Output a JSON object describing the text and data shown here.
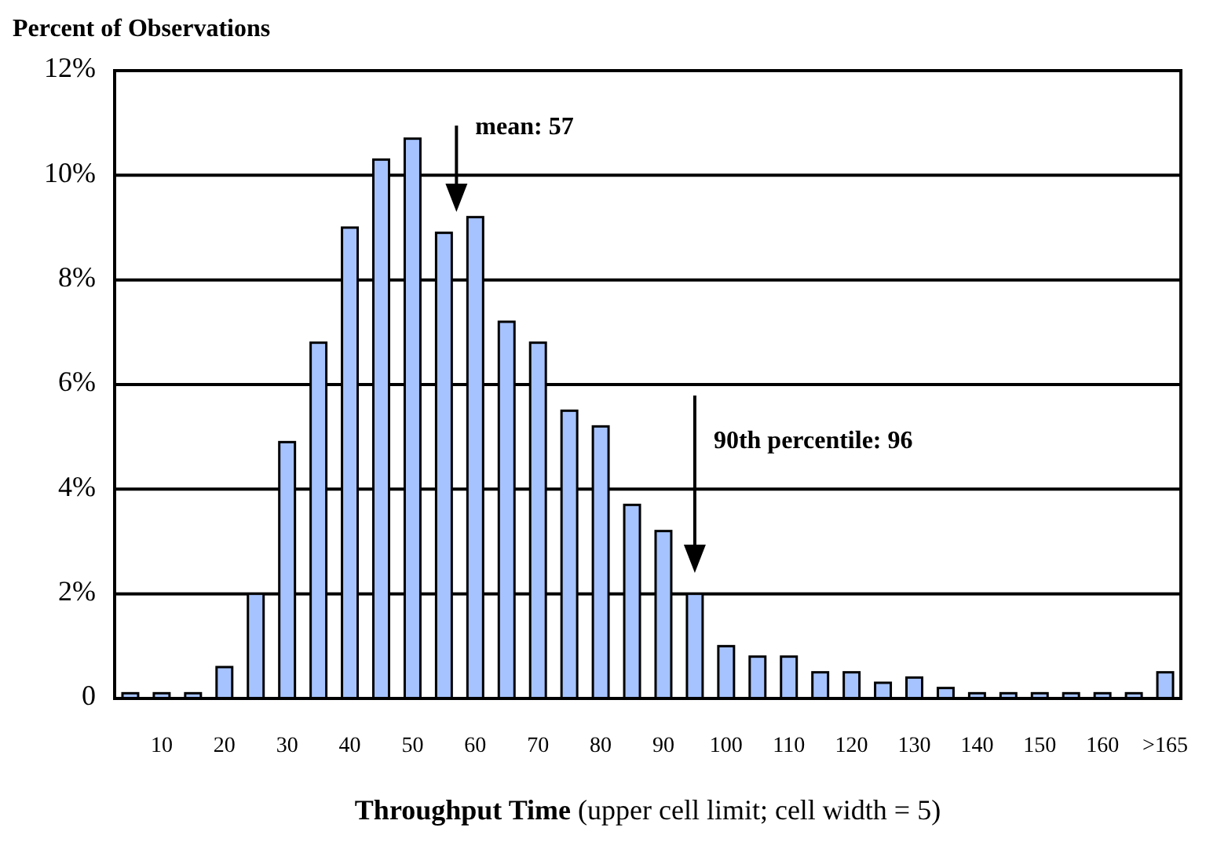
{
  "chart_data": {
    "type": "bar",
    "ylabel": "Percent of Observations",
    "xlabel": "Throughput Time (upper cell limit; cell width = 5)",
    "categories": [
      null,
      "10",
      null,
      "20",
      null,
      "30",
      null,
      "40",
      null,
      "50",
      null,
      "60",
      null,
      "70",
      null,
      "80",
      null,
      "90",
      null,
      "100",
      null,
      "110",
      null,
      "120",
      null,
      "130",
      null,
      "140",
      null,
      "150",
      null,
      "160",
      null,
      ">165"
    ],
    "values": [
      0.1,
      0.1,
      0.1,
      0.6,
      2.0,
      4.9,
      6.8,
      9.0,
      10.3,
      10.7,
      8.9,
      9.2,
      7.2,
      6.8,
      5.5,
      5.2,
      3.7,
      3.2,
      2.0,
      1.0,
      0.8,
      0.8,
      0.5,
      0.5,
      0.3,
      0.4,
      0.2,
      0.1,
      0.1,
      0.1,
      0.1,
      0.1,
      0.1,
      0.5
    ],
    "color": "#a6c3ff",
    "ylim": [
      0,
      12
    ],
    "yticks": [
      0,
      {
        "value": 2,
        "label": "2%"
      },
      {
        "value": 4,
        "label": "4%"
      },
      {
        "value": 6,
        "label": "6%"
      },
      {
        "value": 8,
        "label": "8%"
      },
      {
        "value": 10,
        "label": "10%"
      },
      {
        "value": 12,
        "label": "12%"
      }
    ],
    "grid": "y",
    "annotations": [
      "mean: 57",
      "90th percentile: 96"
    ]
  }
}
